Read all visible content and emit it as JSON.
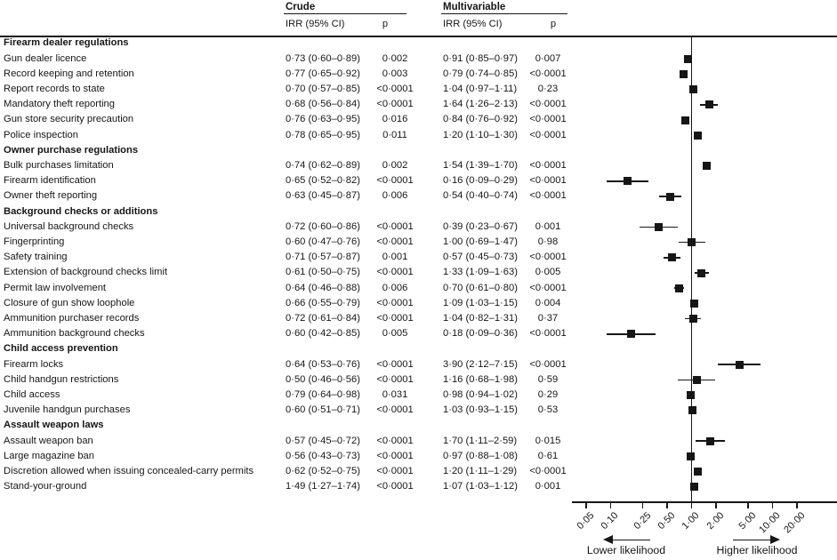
{
  "colors": {
    "ink": "#161616"
  },
  "header": {
    "crude": "Crude",
    "multivariable": "Multivariable",
    "irr_ci": "IRR (95% CI)",
    "p": "p"
  },
  "footer": {
    "lower_label": "Lower likelihood",
    "higher_label": "Higher likelihood"
  },
  "chart_data": {
    "type": "forest",
    "x_scale": "log10",
    "reference_line": 1.0,
    "plotted_estimate": "Multivariable IRR (95% CI)",
    "x_ticks": [
      0.05,
      0.1,
      0.25,
      0.5,
      1.0,
      2.0,
      5.0,
      10.0,
      20.0
    ],
    "x_tick_labels": [
      "0·05",
      "0·10",
      "0·25",
      "0·50",
      "1·00",
      "2·00",
      "5·00",
      "10·00",
      "20·00"
    ],
    "columns": [
      "Crude IRR (95% CI)",
      "Crude p",
      "Multivariable IRR (95% CI)",
      "Multivariable p"
    ],
    "sections": [
      {
        "title": "Firearm dealer regulations",
        "rows": [
          {
            "label": "Gun dealer licence",
            "crude_irr": "0·73 (0·60–0·89)",
            "crude_p": "0·002",
            "multi_irr": "0·91 (0·85–0·97)",
            "multi_p": "0·007",
            "est": 0.91,
            "lo": 0.85,
            "hi": 0.97
          },
          {
            "label": "Record keeping and retention",
            "crude_irr": "0·77 (0·65–0·92)",
            "crude_p": "0·003",
            "multi_irr": "0·79 (0·74–0·85)",
            "multi_p": "<0·0001",
            "est": 0.79,
            "lo": 0.74,
            "hi": 0.85
          },
          {
            "label": "Report records to state",
            "crude_irr": "0·70 (0·57–0·85)",
            "crude_p": "<0·0001",
            "multi_irr": "1·04 (0·97–1·11)",
            "multi_p": "0·23",
            "est": 1.04,
            "lo": 0.97,
            "hi": 1.11
          },
          {
            "label": "Mandatory theft reporting",
            "crude_irr": "0·68 (0·56–0·84)",
            "crude_p": "<0·0001",
            "multi_irr": "1·64 (1·26–2·13)",
            "multi_p": "<0·0001",
            "est": 1.64,
            "lo": 1.26,
            "hi": 2.13
          },
          {
            "label": "Gun store security precaution",
            "crude_irr": "0·76 (0·63–0·95)",
            "crude_p": "0·016",
            "multi_irr": "0·84 (0·76–0·92)",
            "multi_p": "<0·0001",
            "est": 0.84,
            "lo": 0.76,
            "hi": 0.92
          },
          {
            "label": "Police inspection",
            "crude_irr": "0·78 (0·65–0·95)",
            "crude_p": "0·011",
            "multi_irr": "1·20 (1·10–1·30)",
            "multi_p": "<0·0001",
            "est": 1.2,
            "lo": 1.1,
            "hi": 1.3
          }
        ]
      },
      {
        "title": "Owner purchase regulations",
        "rows": [
          {
            "label": "Bulk purchases limitation",
            "crude_irr": "0·74 (0·62–0·89)",
            "crude_p": "0·002",
            "multi_irr": "1·54 (1·39–1·70)",
            "multi_p": "<0·0001",
            "est": 1.54,
            "lo": 1.39,
            "hi": 1.7
          },
          {
            "label": "Firearm identification",
            "crude_irr": "0·65 (0·52–0·82)",
            "crude_p": "<0·0001",
            "multi_irr": "0·16 (0·09–0·29)",
            "multi_p": "<0·0001",
            "est": 0.16,
            "lo": 0.09,
            "hi": 0.29
          },
          {
            "label": "Owner theft reporting",
            "crude_irr": "0·63 (0·45–0·87)",
            "crude_p": "0·006",
            "multi_irr": "0·54 (0·40–0·74)",
            "multi_p": "<0·0001",
            "est": 0.54,
            "lo": 0.4,
            "hi": 0.74
          }
        ]
      },
      {
        "title": "Background checks or additions",
        "rows": [
          {
            "label": "Universal background checks",
            "crude_irr": "0·72 (0·60–0·86)",
            "crude_p": "<0·0001",
            "multi_irr": "0·39 (0·23–0·67)",
            "multi_p": "0·001",
            "est": 0.39,
            "lo": 0.23,
            "hi": 0.67
          },
          {
            "label": "Fingerprinting",
            "crude_irr": "0·60 (0·47–0·76)",
            "crude_p": "<0·0001",
            "multi_irr": "1·00 (0·69–1·47)",
            "multi_p": "0·98",
            "est": 1.0,
            "lo": 0.69,
            "hi": 1.47
          },
          {
            "label": "Safety training",
            "crude_irr": "0·71 (0·57–0·87)",
            "crude_p": "0·001",
            "multi_irr": "0·57 (0·45–0·73)",
            "multi_p": "<0·0001",
            "est": 0.57,
            "lo": 0.45,
            "hi": 0.73
          },
          {
            "label": "Extension of background checks limit",
            "crude_irr": "0·61 (0·50–0·75)",
            "crude_p": "<0·0001",
            "multi_irr": "1·33 (1·09–1·63)",
            "multi_p": "0·005",
            "est": 1.33,
            "lo": 1.09,
            "hi": 1.63
          },
          {
            "label": "Permit law involvement",
            "crude_irr": "0·64 (0·46–0·88)",
            "crude_p": "0·006",
            "multi_irr": "0·70 (0·61–0·80)",
            "multi_p": "<0·0001",
            "est": 0.7,
            "lo": 0.61,
            "hi": 0.8
          },
          {
            "label": "Closure of gun show loophole",
            "crude_irr": "0·66 (0·55–0·79)",
            "crude_p": "<0·0001",
            "multi_irr": "1·09 (1·03–1·15)",
            "multi_p": "0·004",
            "est": 1.09,
            "lo": 1.03,
            "hi": 1.15
          },
          {
            "label": "Ammunition purchaser records",
            "crude_irr": "0·72 (0·61–0·84)",
            "crude_p": "<0·0001",
            "multi_irr": "1·04 (0·82–1·31)",
            "multi_p": "0·37",
            "est": 1.04,
            "lo": 0.82,
            "hi": 1.31
          },
          {
            "label": "Ammunition background checks",
            "crude_irr": "0·60 (0·42–0·85)",
            "crude_p": "0·005",
            "multi_irr": "0·18 (0·09–0·36)",
            "multi_p": "<0·0001",
            "est": 0.18,
            "lo": 0.09,
            "hi": 0.36
          }
        ]
      },
      {
        "title": "Child access prevention",
        "rows": [
          {
            "label": "Firearm locks",
            "crude_irr": "0·64 (0·53–0·76)",
            "crude_p": "<0·0001",
            "multi_irr": "3·90 (2·12–7·15)",
            "multi_p": "<0·0001",
            "est": 3.9,
            "lo": 2.12,
            "hi": 7.15
          },
          {
            "label": "Child handgun restrictions",
            "crude_irr": "0·50 (0·46–0·56)",
            "crude_p": "<0·0001",
            "multi_irr": "1·16 (0·68–1·98)",
            "multi_p": "0·59",
            "est": 1.16,
            "lo": 0.68,
            "hi": 1.98
          },
          {
            "label": "Child access",
            "crude_irr": "0·79 (0·64–0·98)",
            "crude_p": "0·031",
            "multi_irr": "0·98 (0·94–1·02)",
            "multi_p": "0·29",
            "est": 0.98,
            "lo": 0.94,
            "hi": 1.02
          },
          {
            "label": "Juvenile handgun purchases",
            "crude_irr": "0·60 (0·51–0·71)",
            "crude_p": "<0·0001",
            "multi_irr": "1·03 (0·93–1·15)",
            "multi_p": "0·53",
            "est": 1.03,
            "lo": 0.93,
            "hi": 1.15
          }
        ]
      },
      {
        "title": "Assault weapon laws",
        "rows": [
          {
            "label": "Assault weapon ban",
            "crude_irr": "0·57 (0·45–0·72)",
            "crude_p": "<0·0001",
            "multi_irr": "1·70 (1·11–2·59)",
            "multi_p": "0·015",
            "est": 1.7,
            "lo": 1.11,
            "hi": 2.59
          },
          {
            "label": "Large magazine ban",
            "crude_irr": "0·56 (0·43–0·73)",
            "crude_p": "<0·0001",
            "multi_irr": "0·97 (0·88–1·08)",
            "multi_p": "0·61",
            "est": 0.97,
            "lo": 0.88,
            "hi": 1.08
          },
          {
            "label": "Discretion allowed when issuing concealed-carry permits",
            "crude_irr": "0·62 (0·52–0·75)",
            "crude_p": "<0·0001",
            "multi_irr": "1·20 (1·11–1·29)",
            "multi_p": "<0·0001",
            "est": 1.2,
            "lo": 1.11,
            "hi": 1.29
          },
          {
            "label": "Stand-your-ground",
            "crude_irr": "1·49 (1·27–1·74)",
            "crude_p": "<0·0001",
            "multi_irr": "1·07 (1·03–1·12)",
            "multi_p": "0·001",
            "est": 1.07,
            "lo": 1.03,
            "hi": 1.12
          }
        ]
      }
    ]
  }
}
